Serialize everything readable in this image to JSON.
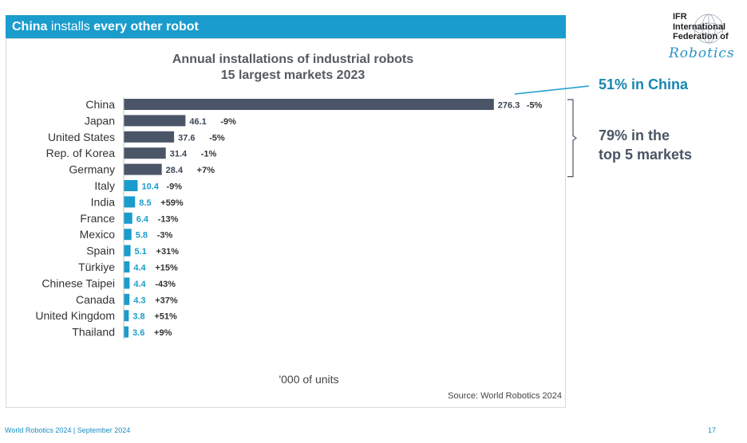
{
  "header": {
    "title_part1": "China",
    "title_part2": " installs ",
    "title_part3": "every other robot"
  },
  "logo": {
    "line1": "IFR",
    "line2": "International",
    "line3": "Federation of",
    "line4": "Robotics"
  },
  "callouts": {
    "china_share": "51% in China",
    "top5_line1": "79% in the",
    "top5_line2": "top 5 markets"
  },
  "footer": {
    "left": "World Robotics 2024  | September 2024",
    "page": "17"
  },
  "colors": {
    "dark_bar": "#4a5568",
    "light_bar": "#1a9ccd",
    "banner": "#1a9ccd"
  },
  "chart_data": {
    "type": "bar",
    "orientation": "horizontal",
    "title": "Annual installations of industrial robots",
    "subtitle": "15 largest markets 2023",
    "xlabel": "'000 of units",
    "source": "Source: World Robotics 2024",
    "xlim": [
      0,
      280
    ],
    "categories": [
      "China",
      "Japan",
      "United States",
      "Rep. of Korea",
      "Germany",
      "Italy",
      "India",
      "France",
      "Mexico",
      "Spain",
      "Türkiye",
      "Chinese Taipei",
      "Canada",
      "United Kingdom",
      "Thailand"
    ],
    "values": [
      276.3,
      46.1,
      37.6,
      31.4,
      28.4,
      10.4,
      8.5,
      6.4,
      5.8,
      5.1,
      4.4,
      4.4,
      4.3,
      3.8,
      3.6
    ],
    "value_labels": [
      "276.3",
      "46.1",
      "37.6",
      "31.4",
      "28.4",
      "10.4",
      "8.5",
      "6.4",
      "5.8",
      "5.1",
      "4.4",
      "4.4",
      "4.3",
      "3.8",
      "3.6"
    ],
    "changes": [
      "-5%",
      "-9%",
      "-5%",
      "-1%",
      "+7%",
      "-9%",
      "+59%",
      "-13%",
      "-3%",
      "+31%",
      "+15%",
      "-43%",
      "+37%",
      "+51%",
      "+9%"
    ],
    "top5_highlight": 5
  }
}
